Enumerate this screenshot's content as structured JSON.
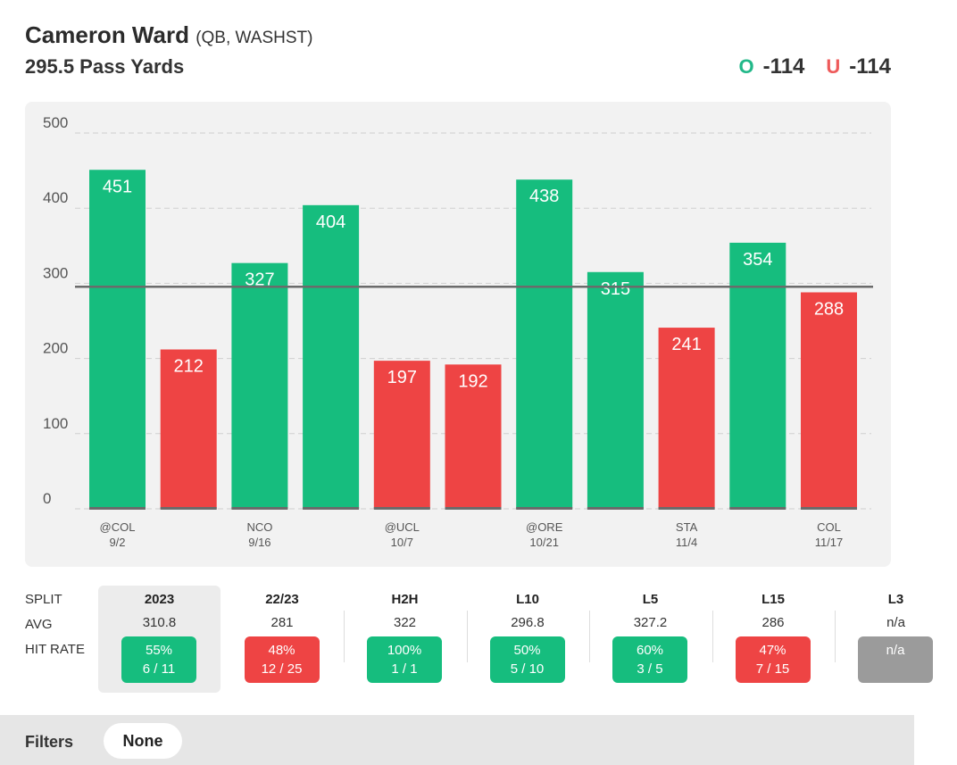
{
  "header": {
    "player_name": "Cameron Ward",
    "player_meta": "(QB, WASHST)",
    "prop_line": "295.5 Pass Yards",
    "over_symbol": "O",
    "over_odds": "-114",
    "under_symbol": "U",
    "under_odds": "-114"
  },
  "colors": {
    "over": "#16bd7e",
    "under": "#ee4444",
    "na": "#9b9b9b"
  },
  "chart_data": {
    "type": "bar",
    "title": "",
    "xlabel": "",
    "ylabel": "",
    "ylim": [
      0,
      500
    ],
    "yticks": [
      0,
      100,
      200,
      300,
      400,
      500
    ],
    "line": 295.5,
    "grid": true,
    "values": [
      451,
      212,
      327,
      404,
      197,
      192,
      438,
      315,
      241,
      354,
      288
    ],
    "results": [
      "over",
      "under",
      "over",
      "over",
      "under",
      "under",
      "over",
      "over",
      "under",
      "over",
      "under"
    ],
    "x_labels": [
      {
        "index": 0,
        "opponent": "@COL",
        "date": "9/2"
      },
      {
        "index": 2,
        "opponent": "NCO",
        "date": "9/16"
      },
      {
        "index": 4,
        "opponent": "@UCL",
        "date": "10/7"
      },
      {
        "index": 6,
        "opponent": "@ORE",
        "date": "10/21"
      },
      {
        "index": 8,
        "opponent": "STA",
        "date": "11/4"
      },
      {
        "index": 10,
        "opponent": "COL",
        "date": "11/17"
      }
    ]
  },
  "splits": {
    "row_labels": {
      "split": "SPLIT",
      "avg": "AVG",
      "hit_rate": "HIT RATE"
    },
    "columns": [
      {
        "name": "2023",
        "avg": "310.8",
        "pct": "55%",
        "record": "6 / 11",
        "status": "green",
        "selected": true
      },
      {
        "name": "22/23",
        "avg": "281",
        "pct": "48%",
        "record": "12 / 25",
        "status": "red",
        "selected": false
      },
      {
        "name": "H2H",
        "avg": "322",
        "pct": "100%",
        "record": "1 / 1",
        "status": "green",
        "selected": false
      },
      {
        "name": "L10",
        "avg": "296.8",
        "pct": "50%",
        "record": "5 / 10",
        "status": "green",
        "selected": false
      },
      {
        "name": "L5",
        "avg": "327.2",
        "pct": "60%",
        "record": "3 / 5",
        "status": "green",
        "selected": false
      },
      {
        "name": "L15",
        "avg": "286",
        "pct": "47%",
        "record": "7 / 15",
        "status": "red",
        "selected": false
      },
      {
        "name": "L3",
        "avg": "n/a",
        "pct": "n/a",
        "record": "",
        "status": "gray",
        "selected": false
      }
    ]
  },
  "filters": {
    "label": "Filters",
    "value": "None"
  }
}
